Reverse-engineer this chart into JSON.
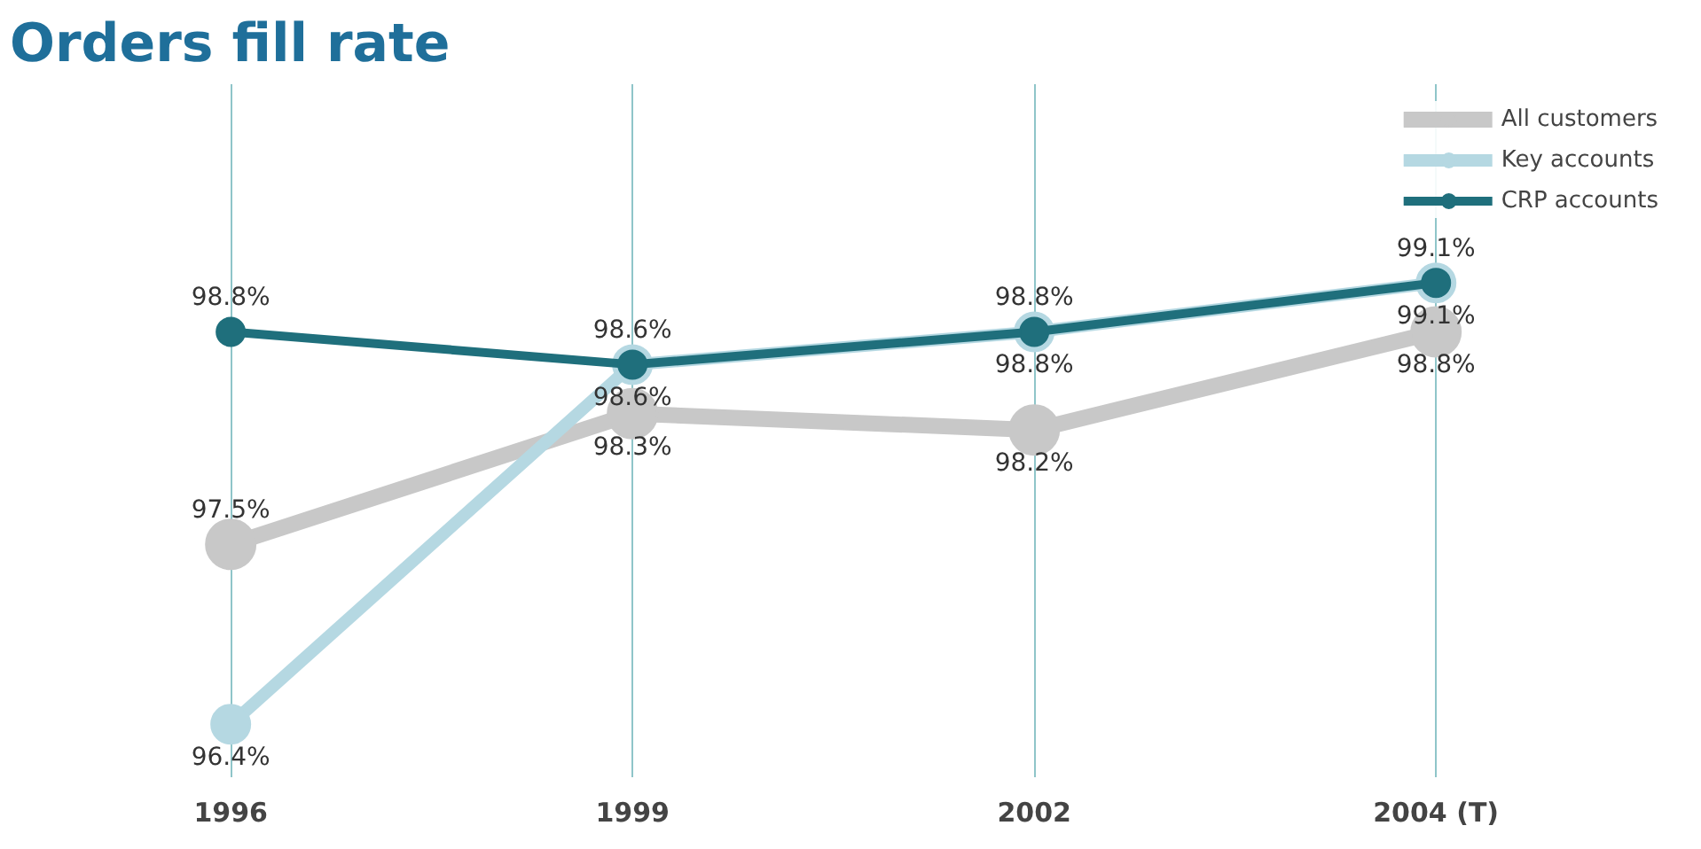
{
  "chart_data": {
    "type": "line",
    "title": "Orders fill rate",
    "categories": [
      "1996",
      "1999",
      "2002",
      "2004 (T)"
    ],
    "series": [
      {
        "name": "All customers",
        "color": "#c8c8c8",
        "values": [
          97.5,
          98.3,
          98.2,
          98.8
        ],
        "value_labels": [
          "97.5%",
          "98.3%",
          "98.2%",
          "98.8%"
        ]
      },
      {
        "name": "Key accounts",
        "color": "#b5d8e2",
        "values": [
          96.4,
          98.6,
          98.8,
          99.1
        ],
        "value_labels": [
          "96.4%",
          "98.6%",
          "98.8%",
          "99.1%"
        ]
      },
      {
        "name": "CRP accounts",
        "color": "#1f6f7c",
        "values": [
          98.8,
          98.6,
          98.8,
          99.1
        ],
        "value_labels": [
          "98.8%",
          "98.6%",
          "98.8%",
          "99.1%"
        ]
      }
    ],
    "grid": "x",
    "legend": "top right",
    "marker": "circle",
    "line_style": "solid",
    "tick_labels": "x"
  }
}
